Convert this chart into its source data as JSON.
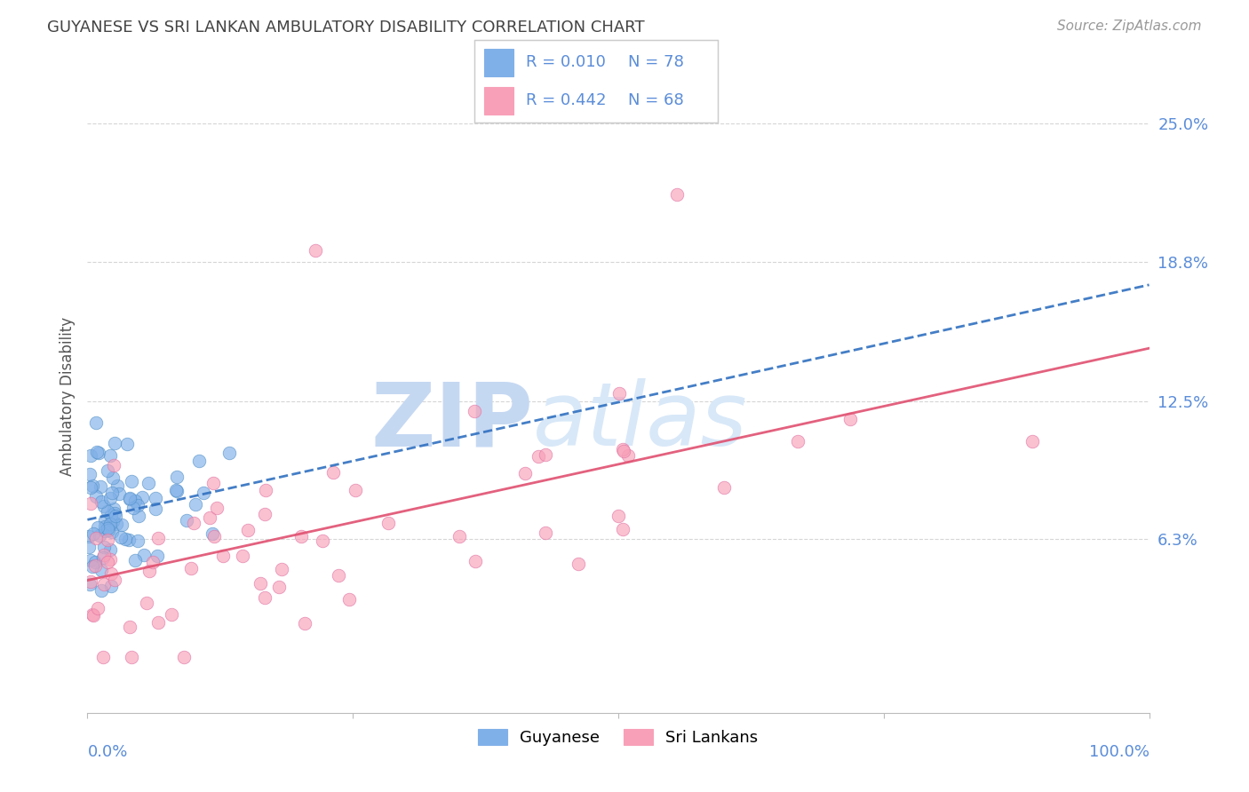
{
  "title": "GUYANESE VS SRI LANKAN AMBULATORY DISABILITY CORRELATION CHART",
  "source": "Source: ZipAtlas.com",
  "ylabel": "Ambulatory Disability",
  "xlim": [
    0.0,
    1.0
  ],
  "ylim": [
    -0.015,
    0.27
  ],
  "yticks": [
    0.063,
    0.125,
    0.188,
    0.25
  ],
  "ytick_labels": [
    "6.3%",
    "12.5%",
    "18.8%",
    "25.0%"
  ],
  "legend_blue_r": "R = 0.010",
  "legend_blue_n": "N = 78",
  "legend_pink_r": "R = 0.442",
  "legend_pink_n": "N = 68",
  "blue_color": "#7EB3E0",
  "pink_color": "#F5A0B0",
  "blue_line_color": "#3070C0",
  "pink_line_color": "#E05070",
  "axis_label_color": "#5B8DD9",
  "title_color": "#444444",
  "background_color": "#FFFFFF",
  "grid_color": "#CCCCCC",
  "blue_scatter_color": "#80B0E8",
  "pink_scatter_color": "#F8A0B8",
  "blue_edge_color": "#5090C8",
  "pink_edge_color": "#E070A0"
}
